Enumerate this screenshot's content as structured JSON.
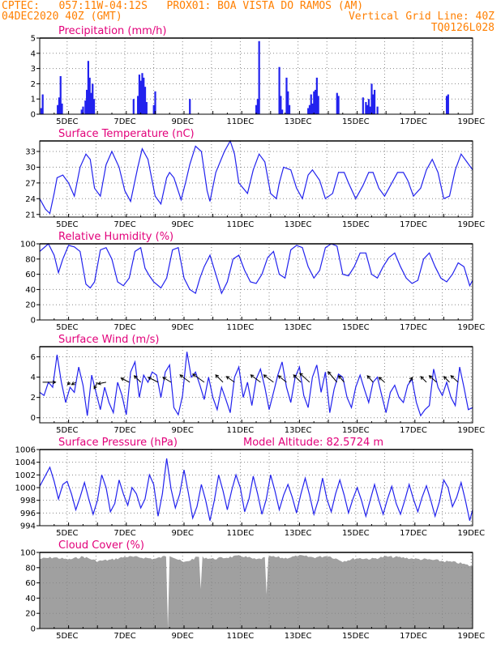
{
  "header": {
    "line1_left": "CPTEC:   057:11W-04:12S   PROX01: BOA VISTA DO RAMOS (AM)",
    "line2_left": "04DEC2020 40Z (GMT)",
    "line2_right": "Vertical Grid Line: 40Z",
    "line3_right": "TQ0126L028"
  },
  "colors": {
    "header": "#ff7f00",
    "title": "#e2007a",
    "series": "#2222ee",
    "cloud": "#a0a0a0",
    "arrow": "#000000"
  },
  "x_labels": [
    "5DEC",
    "7DEC",
    "9DEC",
    "11DEC",
    "13DEC",
    "15DEC",
    "17DEC",
    "19DEC"
  ],
  "chart_data": [
    {
      "type": "bar",
      "title": "Precipitation (mm/h)",
      "ylim": [
        0,
        5
      ],
      "yticks": [
        0,
        1,
        2,
        3,
        4,
        5
      ],
      "grid": true,
      "x_range_days": [
        0,
        15
      ],
      "bars": [
        {
          "x": 0.05,
          "y": 0.4
        },
        {
          "x": 0.1,
          "y": 1.3
        },
        {
          "x": 0.62,
          "y": 0.6
        },
        {
          "x": 0.67,
          "y": 1.1
        },
        {
          "x": 0.72,
          "y": 2.5
        },
        {
          "x": 0.77,
          "y": 0.7
        },
        {
          "x": 1.45,
          "y": 0.3
        },
        {
          "x": 1.5,
          "y": 0.5
        },
        {
          "x": 1.58,
          "y": 0.9
        },
        {
          "x": 1.63,
          "y": 1.6
        },
        {
          "x": 1.68,
          "y": 3.5
        },
        {
          "x": 1.73,
          "y": 2.4
        },
        {
          "x": 1.78,
          "y": 1.4
        },
        {
          "x": 1.83,
          "y": 2.0
        },
        {
          "x": 1.88,
          "y": 1.0
        },
        {
          "x": 3.25,
          "y": 1.0
        },
        {
          "x": 3.4,
          "y": 1.2
        },
        {
          "x": 3.45,
          "y": 2.6
        },
        {
          "x": 3.5,
          "y": 2.2
        },
        {
          "x": 3.55,
          "y": 2.7
        },
        {
          "x": 3.6,
          "y": 2.4
        },
        {
          "x": 3.65,
          "y": 1.8
        },
        {
          "x": 3.7,
          "y": 0.8
        },
        {
          "x": 3.95,
          "y": 0.6
        },
        {
          "x": 4.0,
          "y": 1.5
        },
        {
          "x": 5.2,
          "y": 1.0
        },
        {
          "x": 7.5,
          "y": 0.6
        },
        {
          "x": 7.55,
          "y": 1.0
        },
        {
          "x": 7.6,
          "y": 4.8
        },
        {
          "x": 8.3,
          "y": 3.1
        },
        {
          "x": 8.35,
          "y": 1.2
        },
        {
          "x": 8.4,
          "y": 0.3
        },
        {
          "x": 8.55,
          "y": 2.4
        },
        {
          "x": 8.6,
          "y": 1.5
        },
        {
          "x": 8.65,
          "y": 0.6
        },
        {
          "x": 9.3,
          "y": 0.4
        },
        {
          "x": 9.35,
          "y": 0.6
        },
        {
          "x": 9.4,
          "y": 1.3
        },
        {
          "x": 9.45,
          "y": 0.7
        },
        {
          "x": 9.5,
          "y": 1.5
        },
        {
          "x": 9.55,
          "y": 1.6
        },
        {
          "x": 9.6,
          "y": 2.4
        },
        {
          "x": 9.65,
          "y": 1.2
        },
        {
          "x": 10.3,
          "y": 1.4
        },
        {
          "x": 10.35,
          "y": 1.2
        },
        {
          "x": 11.2,
          "y": 1.1
        },
        {
          "x": 11.3,
          "y": 0.8
        },
        {
          "x": 11.35,
          "y": 0.6
        },
        {
          "x": 11.4,
          "y": 1.0
        },
        {
          "x": 11.45,
          "y": 0.5
        },
        {
          "x": 11.5,
          "y": 2.0
        },
        {
          "x": 11.55,
          "y": 1.3
        },
        {
          "x": 11.6,
          "y": 1.6
        },
        {
          "x": 11.7,
          "y": 0.5
        },
        {
          "x": 14.1,
          "y": 1.2
        },
        {
          "x": 14.15,
          "y": 1.3
        }
      ]
    },
    {
      "type": "line",
      "title": "Surface Temperature (nC)",
      "ylim": [
        20.5,
        35
      ],
      "yticks": [
        21,
        24,
        27,
        30,
        33
      ],
      "grid": true,
      "x_range_days": [
        0,
        15
      ],
      "x": [
        0,
        0.2,
        0.35,
        0.5,
        0.6,
        0.8,
        1.0,
        1.2,
        1.4,
        1.6,
        1.75,
        1.9,
        2.1,
        2.3,
        2.5,
        2.75,
        2.95,
        3.15,
        3.4,
        3.55,
        3.75,
        4.0,
        4.2,
        4.4,
        4.5,
        4.65,
        4.9,
        5.05,
        5.2,
        5.4,
        5.6,
        5.8,
        5.9,
        6.1,
        6.4,
        6.6,
        6.75,
        6.9,
        7.2,
        7.4,
        7.6,
        7.8,
        8.0,
        8.2,
        8.3,
        8.45,
        8.7,
        8.9,
        9.1,
        9.3,
        9.45,
        9.7,
        9.9,
        10.15,
        10.35,
        10.55,
        10.7,
        10.95,
        11.2,
        11.4,
        11.55,
        11.75,
        11.95,
        12.2,
        12.4,
        12.6,
        12.75,
        12.95,
        13.2,
        13.4,
        13.6,
        13.8,
        14.0,
        14.2,
        14.4,
        14.6,
        14.8,
        15.0
      ],
      "y": [
        24,
        22,
        21.2,
        25,
        28,
        28.5,
        27,
        24.5,
        30,
        32.5,
        31.5,
        26,
        24.5,
        30.5,
        33,
        30,
        25.5,
        23.5,
        30,
        33.5,
        31.5,
        24.5,
        23,
        28,
        29,
        28,
        23.8,
        27,
        30.5,
        34,
        33,
        25.5,
        23.5,
        29,
        33,
        35,
        32.5,
        27,
        25,
        29.5,
        32.5,
        31,
        25,
        24,
        27,
        30,
        29.5,
        26,
        24,
        28.5,
        29.5,
        27.5,
        24,
        25,
        29,
        29,
        27,
        24,
        26.5,
        29,
        29,
        26,
        24.5,
        27,
        29,
        29,
        27.5,
        24.5,
        26,
        29.5,
        31.5,
        29,
        24,
        24.5,
        29.5,
        32.5,
        31,
        29.5
      ]
    },
    {
      "type": "line",
      "title": "Relative Humidity (%)",
      "ylim": [
        0,
        100
      ],
      "yticks": [
        0,
        20,
        40,
        60,
        80,
        100
      ],
      "grid": true,
      "x_range_days": [
        0,
        15
      ],
      "x": [
        0,
        0.3,
        0.5,
        0.65,
        0.8,
        1.0,
        1.2,
        1.4,
        1.6,
        1.75,
        1.9,
        2.1,
        2.3,
        2.5,
        2.7,
        2.9,
        3.1,
        3.3,
        3.5,
        3.65,
        3.8,
        3.95,
        4.2,
        4.4,
        4.6,
        4.8,
        5.0,
        5.2,
        5.4,
        5.55,
        5.7,
        5.9,
        6.1,
        6.3,
        6.5,
        6.7,
        6.9,
        7.1,
        7.3,
        7.5,
        7.7,
        7.9,
        8.1,
        8.3,
        8.5,
        8.7,
        8.9,
        9.1,
        9.3,
        9.5,
        9.7,
        9.9,
        10.1,
        10.3,
        10.5,
        10.7,
        10.9,
        11.1,
        11.3,
        11.5,
        11.7,
        11.9,
        12.1,
        12.3,
        12.5,
        12.7,
        12.9,
        13.1,
        13.3,
        13.5,
        13.7,
        13.9,
        14.1,
        14.3,
        14.5,
        14.7,
        14.9,
        15.0
      ],
      "y": [
        90,
        100,
        85,
        62,
        80,
        98,
        96,
        90,
        47,
        42,
        50,
        92,
        95,
        80,
        50,
        45,
        55,
        90,
        95,
        68,
        58,
        50,
        42,
        55,
        92,
        95,
        55,
        40,
        35,
        55,
        70,
        85,
        60,
        35,
        50,
        80,
        85,
        65,
        50,
        48,
        60,
        82,
        90,
        60,
        55,
        92,
        98,
        95,
        70,
        55,
        65,
        95,
        100,
        97,
        60,
        58,
        70,
        88,
        88,
        60,
        55,
        70,
        82,
        88,
        70,
        55,
        48,
        52,
        80,
        88,
        70,
        55,
        50,
        60,
        75,
        70,
        45,
        52
      ]
    },
    {
      "type": "line",
      "title": "Surface Wind (m/s)",
      "ylim": [
        -0.5,
        7
      ],
      "yticks": [
        0,
        2,
        4,
        6
      ],
      "grid": true,
      "x_range_days": [
        0,
        15
      ],
      "x": [
        0,
        0.15,
        0.3,
        0.45,
        0.6,
        0.75,
        0.9,
        1.05,
        1.2,
        1.35,
        1.5,
        1.65,
        1.8,
        1.95,
        2.1,
        2.25,
        2.4,
        2.55,
        2.7,
        2.85,
        3.0,
        3.15,
        3.3,
        3.45,
        3.6,
        3.75,
        3.9,
        4.05,
        4.2,
        4.35,
        4.5,
        4.65,
        4.8,
        4.95,
        5.1,
        5.25,
        5.4,
        5.55,
        5.7,
        5.85,
        6.0,
        6.15,
        6.3,
        6.45,
        6.6,
        6.75,
        6.9,
        7.05,
        7.2,
        7.35,
        7.5,
        7.65,
        7.8,
        7.95,
        8.1,
        8.25,
        8.4,
        8.55,
        8.7,
        8.85,
        9.0,
        9.15,
        9.3,
        9.45,
        9.6,
        9.75,
        9.9,
        10.05,
        10.2,
        10.35,
        10.5,
        10.65,
        10.8,
        10.95,
        11.1,
        11.25,
        11.4,
        11.55,
        11.7,
        11.85,
        12.0,
        12.15,
        12.3,
        12.45,
        12.6,
        12.75,
        12.9,
        13.05,
        13.2,
        13.35,
        13.5,
        13.65,
        13.8,
        13.95,
        14.1,
        14.25,
        14.4,
        14.55,
        14.7,
        14.85,
        15.0
      ],
      "y": [
        2.5,
        2.2,
        3.5,
        3.0,
        6.2,
        3.5,
        1.5,
        3.0,
        2.5,
        5.0,
        3.2,
        0.2,
        4.2,
        2.5,
        0.8,
        3.0,
        1.5,
        0.5,
        3.5,
        2.2,
        0.3,
        4.5,
        5.5,
        2.0,
        4.2,
        3.5,
        4.5,
        4.2,
        2.0,
        4.5,
        5.2,
        1.0,
        0.3,
        2.2,
        6.5,
        4.0,
        4.5,
        3.2,
        1.8,
        4.0,
        2.0,
        0.8,
        3.0,
        1.8,
        0.5,
        4.0,
        5.0,
        2.0,
        3.5,
        1.2,
        3.8,
        4.8,
        3.0,
        0.8,
        2.5,
        4.2,
        5.5,
        3.0,
        1.5,
        4.0,
        5.0,
        2.2,
        1.0,
        4.0,
        5.2,
        2.5,
        4.5,
        0.5,
        2.8,
        4.3,
        4.0,
        2.0,
        1.0,
        3.0,
        4.2,
        2.8,
        1.5,
        3.5,
        4.0,
        2.2,
        0.5,
        2.5,
        3.2,
        2.0,
        1.5,
        3.2,
        3.8,
        1.5,
        0.2,
        0.8,
        1.2,
        4.8,
        3.0,
        2.2,
        3.5,
        2.0,
        1.2,
        5.0,
        3.0,
        0.8,
        1.0
      ],
      "arrows": [
        {
          "x": 0.1,
          "dx": 16,
          "dy": 0
        },
        {
          "x": 1.05,
          "dx": -3,
          "dy": -3
        },
        {
          "x": 1.25,
          "dx": -5,
          "dy": -3
        },
        {
          "x": 2.0,
          "dx": -4,
          "dy": -8
        },
        {
          "x": 2.3,
          "dx": -10,
          "dy": -2
        },
        {
          "x": 3.1,
          "dx": -10,
          "dy": 5
        },
        {
          "x": 3.5,
          "dx": -8,
          "dy": 8
        },
        {
          "x": 4.1,
          "dx": -12,
          "dy": 6
        },
        {
          "x": 4.55,
          "dx": -10,
          "dy": 6
        },
        {
          "x": 5.2,
          "dx": -12,
          "dy": 9
        },
        {
          "x": 5.7,
          "dx": -14,
          "dy": 10
        },
        {
          "x": 6.35,
          "dx": -9,
          "dy": 9
        },
        {
          "x": 6.75,
          "dx": -10,
          "dy": 7
        },
        {
          "x": 7.65,
          "dx": -12,
          "dy": 9
        },
        {
          "x": 8.1,
          "dx": -12,
          "dy": 9
        },
        {
          "x": 8.55,
          "dx": -10,
          "dy": 8
        },
        {
          "x": 9.05,
          "dx": -9,
          "dy": 9
        },
        {
          "x": 9.35,
          "dx": -12,
          "dy": 11
        },
        {
          "x": 10.3,
          "dx": -11,
          "dy": 13
        },
        {
          "x": 10.55,
          "dx": -7,
          "dy": 8
        },
        {
          "x": 11.55,
          "dx": -7,
          "dy": 8
        },
        {
          "x": 11.95,
          "dx": -7,
          "dy": 6
        },
        {
          "x": 12.8,
          "dx": 4,
          "dy": 6
        },
        {
          "x": 13.4,
          "dx": -7,
          "dy": 7
        },
        {
          "x": 13.75,
          "dx": -9,
          "dy": 8
        },
        {
          "x": 14.2,
          "dx": -7,
          "dy": 7
        },
        {
          "x": 14.5,
          "dx": -9,
          "dy": 8
        }
      ]
    },
    {
      "type": "line",
      "title": "Surface Pressure (hPa)",
      "annotation": "Model Altitude: 82.5724 m",
      "ylim": [
        994,
        1006
      ],
      "yticks": [
        994,
        996,
        998,
        1000,
        1002,
        1004,
        1006
      ],
      "grid": true,
      "x_range_days": [
        0,
        15
      ],
      "x": [
        0,
        0.15,
        0.35,
        0.5,
        0.65,
        0.8,
        0.95,
        1.1,
        1.25,
        1.4,
        1.55,
        1.7,
        1.85,
        2.0,
        2.15,
        2.3,
        2.45,
        2.6,
        2.75,
        2.9,
        3.05,
        3.2,
        3.35,
        3.5,
        3.65,
        3.8,
        3.95,
        4.1,
        4.25,
        4.4,
        4.55,
        4.7,
        4.85,
        5.0,
        5.15,
        5.3,
        5.45,
        5.6,
        5.75,
        5.9,
        6.05,
        6.2,
        6.35,
        6.5,
        6.65,
        6.8,
        6.95,
        7.1,
        7.25,
        7.4,
        7.55,
        7.7,
        7.85,
        8.0,
        8.15,
        8.3,
        8.45,
        8.6,
        8.75,
        8.9,
        9.05,
        9.2,
        9.35,
        9.5,
        9.65,
        9.8,
        9.95,
        10.1,
        10.25,
        10.4,
        10.55,
        10.7,
        10.85,
        11.0,
        11.15,
        11.3,
        11.45,
        11.6,
        11.75,
        11.9,
        12.05,
        12.2,
        12.35,
        12.5,
        12.65,
        12.8,
        12.95,
        13.1,
        13.25,
        13.4,
        13.55,
        13.7,
        13.85,
        14.0,
        14.15,
        14.3,
        14.45,
        14.6,
        14.75,
        14.9,
        15.0
      ],
      "y": [
        1000.2,
        1001.5,
        1003.2,
        1001.0,
        998.2,
        1000.5,
        1001.0,
        999.0,
        996.5,
        998.5,
        1000.8,
        998.2,
        995.8,
        998.0,
        1002.0,
        1000.0,
        996.2,
        997.5,
        1001.2,
        999.0,
        997.2,
        1000.0,
        999.0,
        996.8,
        998.2,
        1002.0,
        1000.5,
        995.5,
        999.0,
        1004.6,
        999.8,
        996.8,
        999.0,
        1002.8,
        999.2,
        995.2,
        997.0,
        1000.5,
        998.0,
        994.8,
        998.0,
        1002.0,
        999.5,
        996.5,
        999.5,
        1002.0,
        1000.0,
        996.2,
        998.2,
        1001.8,
        999.0,
        995.8,
        998.2,
        1002.0,
        999.5,
        996.5,
        998.8,
        1000.5,
        998.5,
        996.0,
        999.0,
        1001.5,
        998.8,
        995.8,
        998.0,
        1001.5,
        998.2,
        996.2,
        999.0,
        1001.2,
        998.8,
        996.0,
        998.2,
        1000.0,
        998.0,
        995.5,
        998.0,
        1000.5,
        998.0,
        995.8,
        998.2,
        1000.2,
        997.5,
        995.8,
        998.0,
        1000.5,
        998.2,
        996.2,
        998.5,
        1000.3,
        998.0,
        995.5,
        997.8,
        1001.2,
        1000.0,
        997.0,
        998.5,
        1000.8,
        998.0,
        994.8,
        996.5
      ]
    },
    {
      "type": "area",
      "title": "Cloud Cover (%)",
      "ylim": [
        0,
        100
      ],
      "yticks": [
        0,
        20,
        40,
        60,
        80,
        100
      ],
      "grid": true,
      "x_range_days": [
        0,
        15
      ],
      "anchors_x": [
        0,
        0.5,
        1.0,
        1.5,
        2.0,
        2.5,
        3.0,
        3.5,
        4.0,
        4.5,
        5.0,
        5.5,
        6.0,
        6.5,
        7.0,
        7.5,
        8.0,
        8.5,
        9.0,
        9.5,
        10.0,
        10.5,
        11.0,
        11.5,
        12.0,
        12.5,
        13.0,
        13.5,
        14.0,
        14.5,
        15.0
      ],
      "anchors_y": [
        93,
        95,
        92,
        96,
        90,
        92,
        96,
        95,
        93,
        98,
        88,
        96,
        93,
        95,
        97,
        92,
        96,
        94,
        97,
        95,
        97,
        90,
        94,
        93,
        96,
        95,
        93,
        92,
        90,
        88,
        83
      ],
      "dips": [
        {
          "x": 5.6,
          "y": 52
        },
        {
          "x": 7.85,
          "y": 45
        },
        {
          "x": 4.45,
          "y": 0
        }
      ]
    }
  ]
}
